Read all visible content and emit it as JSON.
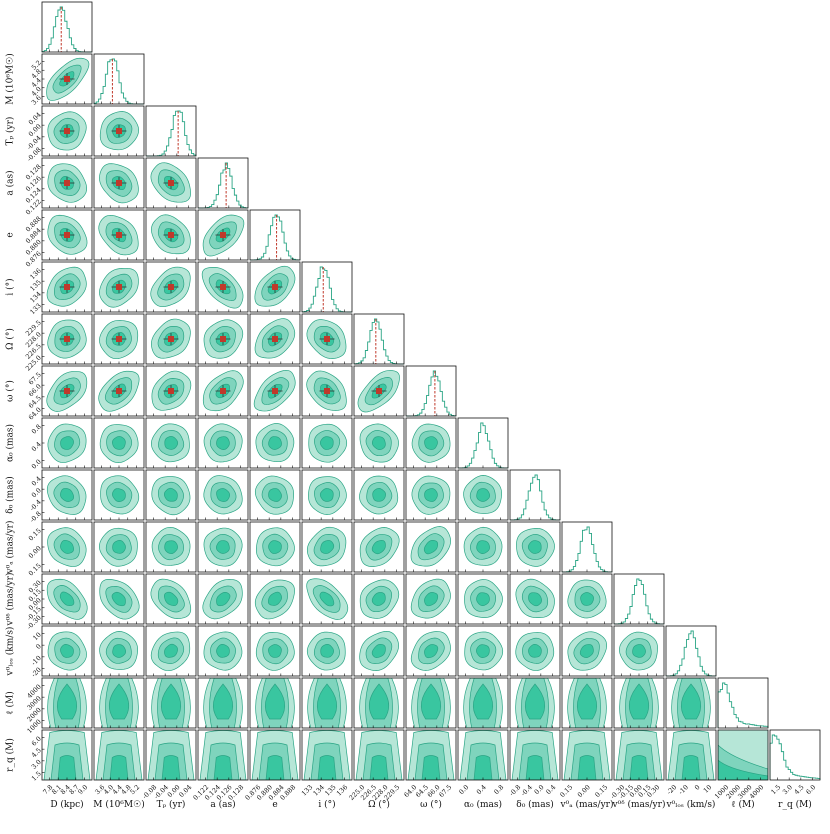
{
  "chart_data": {
    "type": "corner",
    "title": "",
    "parameters": [
      {
        "key": "D",
        "label": "D (kpc)",
        "ticks": [
          "7.8",
          "8.1",
          "8.4",
          "8.7",
          "9.0"
        ],
        "truth": 8.2,
        "range": [
          7.7,
          9.0
        ]
      },
      {
        "key": "M",
        "label": "M (10⁶M☉)",
        "ticks": [
          "3.6",
          "4.0",
          "4.4",
          "4.8",
          "5.2"
        ],
        "truth": 4.1,
        "range": [
          3.4,
          5.3
        ]
      },
      {
        "key": "Tp",
        "label": "Tₚ (yr)",
        "ticks": [
          "-0.08",
          "-0.04",
          "0.00",
          "0.04"
        ],
        "truth": 0.0,
        "range": [
          -0.09,
          0.05
        ]
      },
      {
        "key": "a",
        "label": "a (as)",
        "ticks": [
          "0.122",
          "0.124",
          "0.126",
          "0.128"
        ],
        "truth": 0.1255,
        "range": [
          0.121,
          0.129
        ]
      },
      {
        "key": "e",
        "label": "e",
        "ticks": [
          "0.876",
          "0.880",
          "0.884",
          "0.888"
        ],
        "truth": 0.8825,
        "range": [
          0.874,
          0.89
        ]
      },
      {
        "key": "i",
        "label": "i (°)",
        "ticks": [
          "133",
          "134",
          "135",
          "136"
        ],
        "truth": 134.2,
        "range": [
          132.5,
          136.5
        ]
      },
      {
        "key": "Omega",
        "label": "Ω (°)",
        "ticks": [
          "225.0",
          "226.5",
          "228.0",
          "229.5"
        ],
        "truth": 226.9,
        "range": [
          224.5,
          230.0
        ]
      },
      {
        "key": "omega",
        "label": "ω (°)",
        "ticks": [
          "64.0",
          "64.5",
          "66.0",
          "67.5"
        ],
        "truth": 66.1,
        "range": [
          63.5,
          68.0
        ]
      },
      {
        "key": "alpha0",
        "label": "α₀ (mas)",
        "ticks": [
          "0.0",
          "0.4",
          "0.8"
        ],
        "truth": null,
        "range": [
          -0.4,
          1.0
        ]
      },
      {
        "key": "delta0",
        "label": "δ₀ (mas)",
        "ticks": [
          "-0.8",
          "-0.4",
          "0.0",
          "0.4"
        ],
        "truth": null,
        "range": [
          -1.0,
          0.6
        ]
      },
      {
        "key": "va0",
        "label": "v⁰ₐ (mas/yr)",
        "ticks": [
          "0.15",
          "0.00",
          "0.15"
        ],
        "truth": null,
        "range": [
          -0.25,
          0.3
        ]
      },
      {
        "key": "vd0",
        "label": "v⁰ᵟ (mas/yr)",
        "ticks": [
          "-0.30",
          "-0.15",
          "0.00",
          "0.15",
          "0.30"
        ],
        "truth": null,
        "range": [
          -0.35,
          0.4
        ]
      },
      {
        "key": "vlos0",
        "label": "v⁰ₗₒₛ (km/s)",
        "ticks": [
          "-20",
          "-10",
          "0",
          "10"
        ],
        "truth": null,
        "range": [
          -25,
          15
        ]
      },
      {
        "key": "ell",
        "label": "ℓ (M)",
        "ticks": [
          "1000",
          "2000",
          "3000",
          "4000"
        ],
        "truth": null,
        "range": [
          500,
          4500
        ]
      },
      {
        "key": "rq",
        "label": "r_q (M)",
        "ticks": [
          "1.5",
          "3.0",
          "4.5",
          "6.0"
        ],
        "truth": null,
        "range": [
          0.5,
          6.5
        ]
      }
    ],
    "truth_parameter_count": 8,
    "grid": false,
    "legend": "none"
  }
}
